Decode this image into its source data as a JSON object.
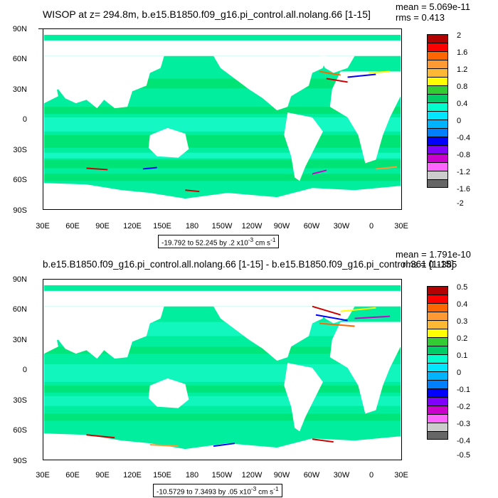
{
  "panels": [
    {
      "title": "WISOP at z= 294.8m, b.e15.B1850.f09_g16.pi_control.all.nolang.66 [1-15]",
      "mean": "mean = 5.069e-11",
      "rms": "rms = 0.413",
      "range": "-19.792 to 52.245 by .2 x10",
      "range_exp": "-3",
      "range_units": " cm s",
      "range_units_exp": "-1",
      "colorbar_labels": [
        "2",
        "1.6",
        "1.2",
        "0.8",
        "0.4",
        "0",
        "-0.4",
        "-0.8",
        "-1.2",
        "-1.6",
        "-2"
      ]
    },
    {
      "title": "b.e15.B1850.f09_g16.pi_control.all.nolang.66 [1-15] - b.e15.B1850.f09_g16.pi_control.361 [1-15]",
      "mean": "mean = 1.791e-10",
      "rms": "rms = 0.1385",
      "range": "-10.5729 to 7.3493 by .05 x10",
      "range_exp": "-3",
      "range_units": " cm s",
      "range_units_exp": "-1",
      "colorbar_labels": [
        "0.5",
        "0.4",
        "0.3",
        "0.2",
        "0.1",
        "0",
        "-0.1",
        "-0.2",
        "-0.3",
        "-0.4",
        "-0.5"
      ]
    }
  ],
  "lat_labels": [
    "90N",
    "60N",
    "30N",
    "0",
    "30S",
    "60S",
    "90S"
  ],
  "lon_labels": [
    "30E",
    "60E",
    "90E",
    "120E",
    "150E",
    "180",
    "150W",
    "120W",
    "90W",
    "60W",
    "30W",
    "0",
    "30E"
  ],
  "colorbar_colors": [
    "#b30000",
    "#ff0000",
    "#ff6600",
    "#ff9933",
    "#ffb833",
    "#ffff00",
    "#33cc33",
    "#00cc66",
    "#00ffcc",
    "#00e6ff",
    "#00b3ff",
    "#0080ff",
    "#0000ff",
    "#8000ff",
    "#cc00cc",
    "#ff66ff",
    "#cccccc",
    "#666666"
  ],
  "colors": {
    "ocean_main": "#00ee9e",
    "ocean_alt": "#00dd55",
    "ocean_cyan": "#22ffdd",
    "land": "#ffffff"
  }
}
